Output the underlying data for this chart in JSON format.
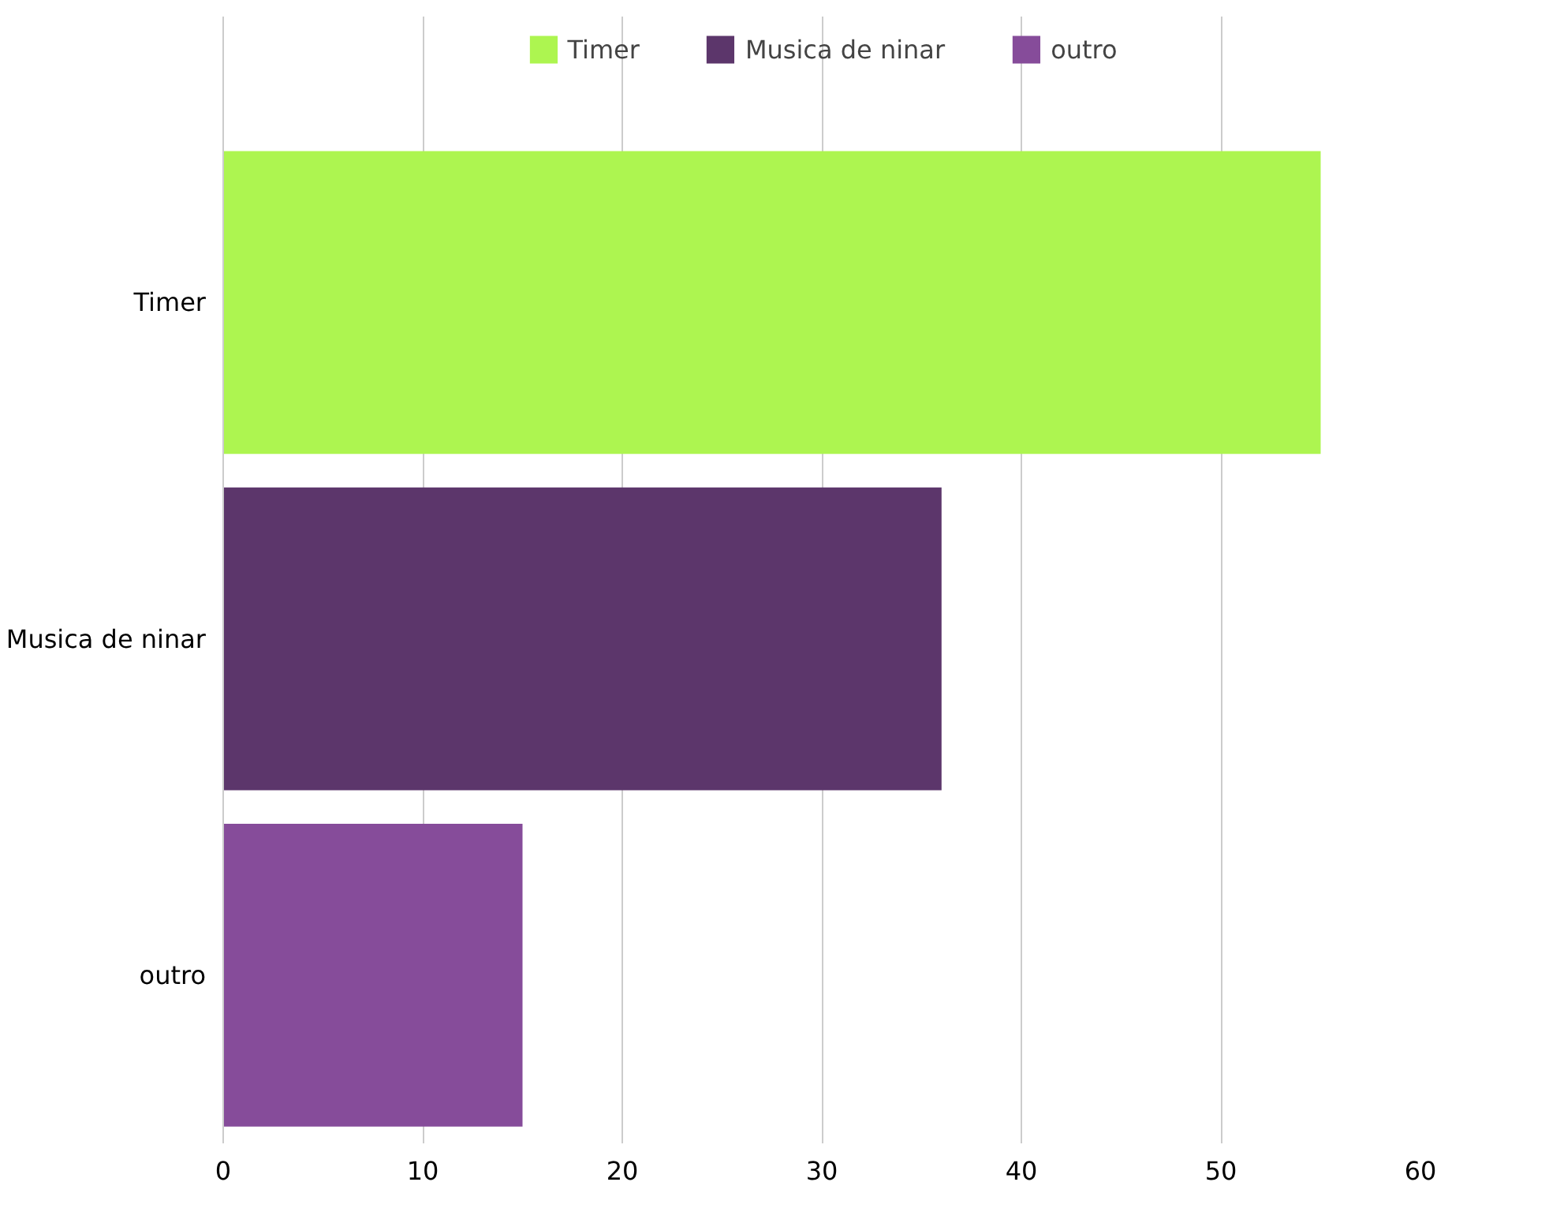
{
  "chart_data": {
    "type": "bar",
    "orientation": "horizontal",
    "categories": [
      "Timer",
      "Musica de ninar",
      "outro"
    ],
    "series": [
      {
        "name": "Timer",
        "color": "#adf550",
        "values": [
          55,
          null,
          null
        ]
      },
      {
        "name": "Musica de ninar",
        "color": "#5c366b",
        "values": [
          null,
          36,
          null
        ]
      },
      {
        "name": "outro",
        "color": "#864c9a",
        "values": [
          null,
          null,
          15
        ]
      }
    ],
    "xlim": [
      0,
      60
    ],
    "xticks": [
      0,
      10,
      20,
      30,
      40,
      50,
      60
    ],
    "grid": "x",
    "legend": "top"
  }
}
